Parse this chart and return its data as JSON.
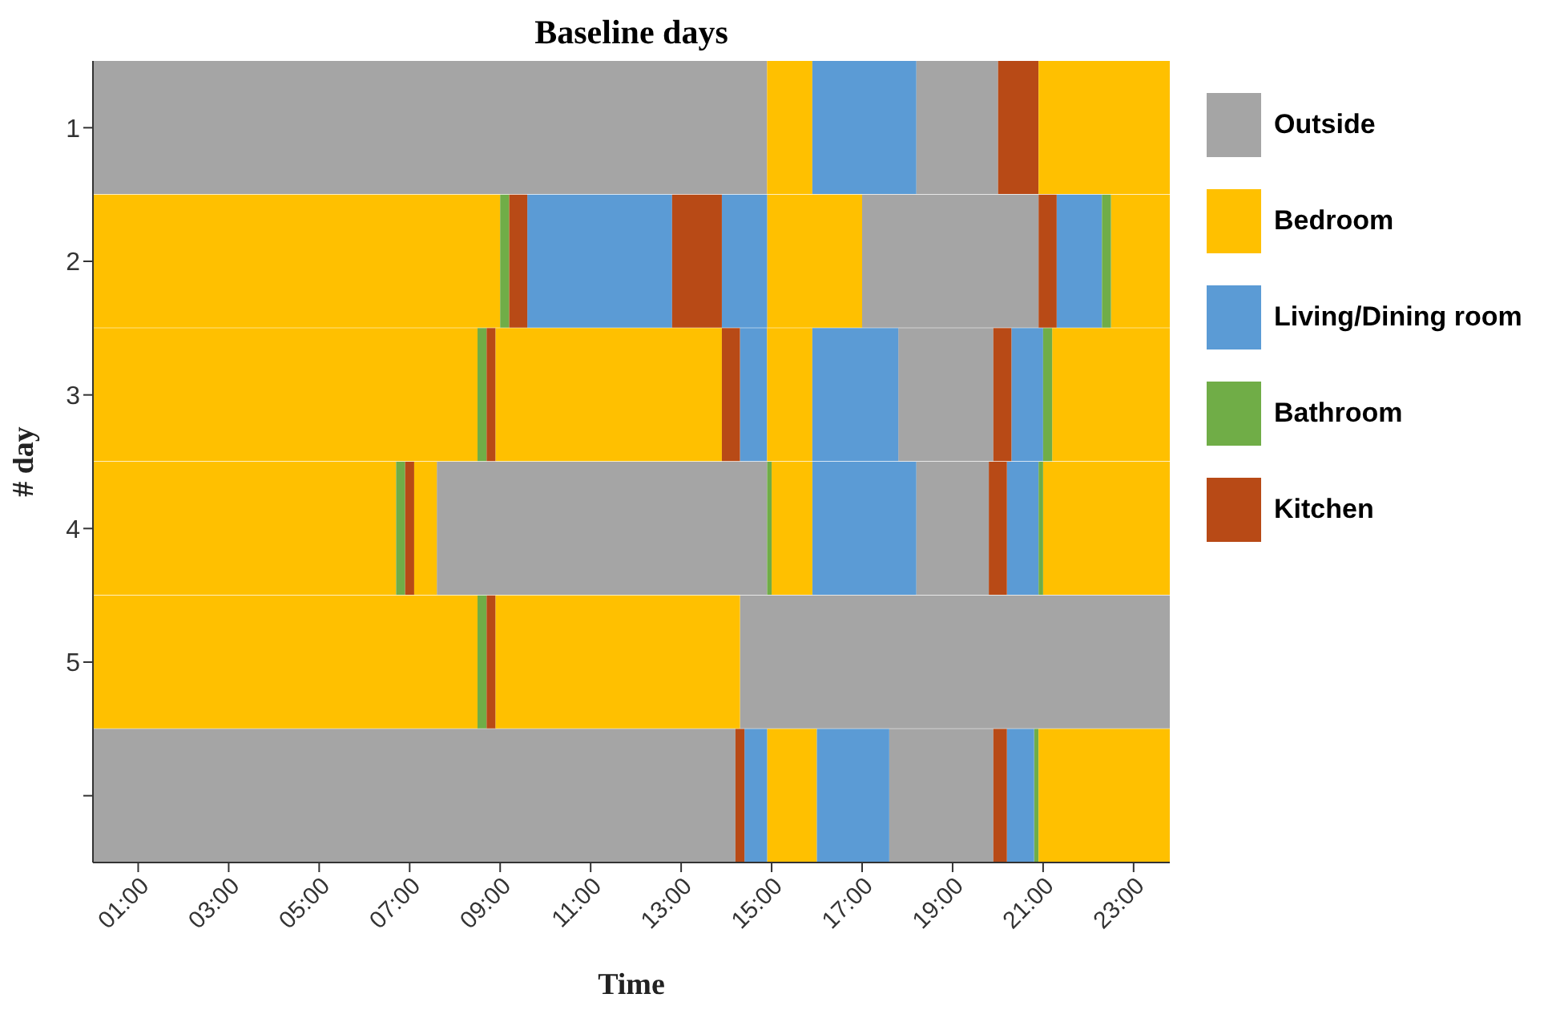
{
  "chart_data": {
    "type": "bar",
    "orientation": "horizontal",
    "title": "Baseline days",
    "xlabel": "Time",
    "ylabel": "# day",
    "categories": [
      "1",
      "2",
      "3",
      "4",
      "5",
      null
    ],
    "xlim": [
      0,
      23.8
    ],
    "xticks": [
      {
        "value": 1,
        "label": "01:00"
      },
      {
        "value": 3,
        "label": "03:00"
      },
      {
        "value": 5,
        "label": "05:00"
      },
      {
        "value": 7,
        "label": "07:00"
      },
      {
        "value": 9,
        "label": "09:00"
      },
      {
        "value": 11,
        "label": "11:00"
      },
      {
        "value": 13,
        "label": "13:00"
      },
      {
        "value": 15,
        "label": "15:00"
      },
      {
        "value": 17,
        "label": "17:00"
      },
      {
        "value": 19,
        "label": "19:00"
      },
      {
        "value": 21,
        "label": "21:00"
      },
      {
        "value": 23,
        "label": "23:00"
      }
    ],
    "legend": "right",
    "series": [
      {
        "name": "Outside",
        "color": "#a5a5a5",
        "base": [
          0,
          17.0,
          17.8,
          7.6,
          14.3,
          0
        ],
        "values": [
          14.9,
          3.9,
          2.1,
          7.3,
          9.5,
          14.2
        ]
      },
      {
        "name": "Bedroom",
        "color": "#ffc000",
        "base": [
          14.9,
          0,
          0,
          0,
          0,
          14.9
        ],
        "values": [
          1.0,
          9.0,
          8.5,
          6.7,
          8.5,
          1.1
        ]
      },
      {
        "name": "Living/Dining room",
        "color": "#5b9bd5",
        "base": [
          15.9,
          9.6,
          14.3,
          15.9,
          null,
          14.4
        ],
        "values": [
          2.3,
          3.2,
          0.6,
          2.3,
          null,
          0.5
        ]
      },
      {
        "name": "Bathroom",
        "color": "#70ad47",
        "base": [
          null,
          9.0,
          8.5,
          6.7,
          8.5,
          20.8
        ],
        "values": [
          null,
          0.2,
          0.2,
          0.2,
          0.2,
          0.1
        ]
      },
      {
        "name": "Kitchen",
        "color": "#b84a16",
        "base": [
          20.0,
          9.2,
          8.7,
          6.9,
          8.7,
          14.2
        ],
        "values": [
          0.9,
          0.4,
          0.2,
          0.2,
          0.2,
          0.2
        ]
      },
      {
        "color": "#a5a5a5",
        "base": [
          18.2,
          null,
          null,
          18.2,
          null,
          17.6
        ],
        "values": [
          1.8,
          null,
          null,
          1.6,
          null,
          2.3
        ]
      },
      {
        "color": "#ffc000",
        "base": [
          20.9,
          14.9,
          8.9,
          7.1,
          8.9,
          20.9
        ],
        "values": [
          2.9,
          2.1,
          5.0,
          0.5,
          5.4,
          2.9
        ]
      },
      {
        "color": "#ffc000",
        "base": [
          null,
          22.5,
          14.9,
          15.0,
          null,
          null
        ],
        "values": [
          null,
          1.3,
          1.0,
          0.9,
          null,
          null
        ]
      },
      {
        "color": "#ffc000",
        "base": [
          null,
          null,
          21.2,
          21.0,
          null,
          null
        ],
        "values": [
          null,
          null,
          2.6,
          2.8,
          null,
          null
        ]
      },
      {
        "color": "#5b9bd5",
        "base": [
          null,
          13.9,
          15.9,
          20.2,
          null,
          16.0
        ],
        "values": [
          null,
          1.0,
          1.9,
          0.7,
          null,
          1.6
        ]
      },
      {
        "color": "#5b9bd5",
        "base": [
          null,
          21.3,
          20.3,
          null,
          null,
          20.2
        ],
        "values": [
          null,
          1.0,
          0.7,
          null,
          null,
          0.6
        ]
      },
      {
        "color": "#70ad47",
        "base": [
          null,
          22.3,
          21.0,
          14.9,
          null,
          null
        ],
        "values": [
          null,
          0.2,
          0.2,
          0.1,
          null,
          null
        ]
      },
      {
        "color": "#70ad47",
        "base": [
          null,
          null,
          null,
          20.9,
          null,
          null
        ],
        "values": [
          null,
          null,
          null,
          0.1,
          null,
          null
        ]
      },
      {
        "color": "#b84a16",
        "base": [
          null,
          12.8,
          13.9,
          19.8,
          null,
          19.9
        ],
        "values": [
          null,
          1.1,
          0.4,
          0.4,
          null,
          0.3
        ]
      },
      {
        "color": "#b84a16",
        "base": [
          null,
          20.9,
          19.9,
          null,
          null,
          null
        ],
        "values": [
          null,
          0.4,
          0.4,
          null,
          null,
          null
        ]
      }
    ]
  }
}
